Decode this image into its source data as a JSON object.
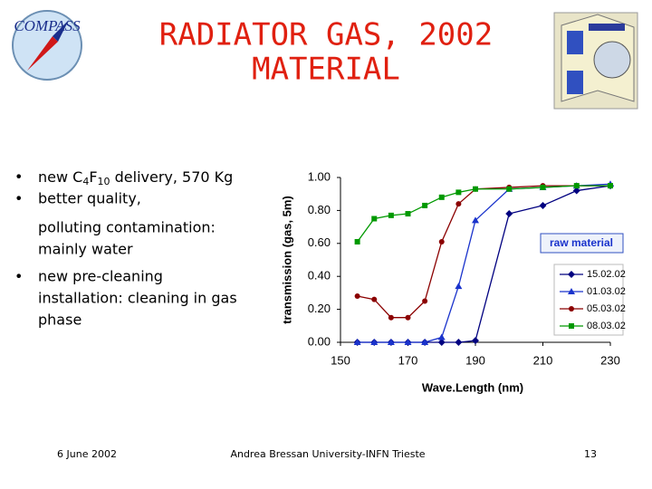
{
  "slide": {
    "logo": "COMPASS",
    "title": [
      "RADIATOR GAS, 2002",
      "MATERIAL"
    ],
    "bullets": [
      [
        [
          "new C",
          "4",
          "F",
          "10",
          " delivery, 570 Kg"
        ]
      ],
      [
        "better quality,",
        "polluting contamination:",
        "mainly water"
      ],
      [
        "new pre-cleaning",
        "installation: cleaning in gas",
        "phase"
      ]
    ],
    "footer": {
      "date": "6 June 2002",
      "author": "Andrea Bressan University-INFN Trieste",
      "page": "13"
    }
  },
  "chart_data": {
    "type": "line",
    "y_label": "transmission (gas, 5m)",
    "x_label": "Wave.Length (nm)",
    "annotation": "raw material",
    "x": [
      155,
      160,
      165,
      170,
      175,
      180,
      185,
      190,
      200,
      210,
      220,
      230
    ],
    "xlim": [
      150,
      230
    ],
    "xticks": [
      150,
      170,
      190,
      210,
      230
    ],
    "ylim": [
      0,
      1
    ],
    "yticks": [
      {
        "value": 0,
        "label": "0.00"
      },
      {
        "value": 0.2,
        "label": "0.20"
      },
      {
        "value": 0.4,
        "label": "0.40"
      },
      {
        "value": 0.6,
        "label": "0.60"
      },
      {
        "value": 0.8,
        "label": "0.80"
      },
      {
        "value": 1,
        "label": "1.00"
      }
    ],
    "grid": false,
    "legend": "lower right",
    "series": [
      {
        "name": "15.02.02",
        "color": "#000080",
        "marker": "diamond",
        "values": [
          0,
          0,
          0,
          0,
          0,
          0,
          0,
          0.01,
          0.78,
          0.83,
          0.92,
          0.95
        ]
      },
      {
        "name": "01.03.02",
        "color": "#1a33cc",
        "marker": "triangle",
        "values": [
          0,
          0,
          0,
          0,
          0,
          0.03,
          0.34,
          0.74,
          0.93,
          0.94,
          0.95,
          0.96
        ]
      },
      {
        "name": "05.03.02",
        "color": "#8b0000",
        "marker": "circle",
        "values": [
          0.28,
          0.26,
          0.15,
          0.15,
          0.25,
          0.61,
          0.84,
          0.93,
          0.94,
          0.95,
          0.95,
          0.95
        ]
      },
      {
        "name": "08.03.02",
        "color": "#009900",
        "marker": "square",
        "values": [
          0.61,
          0.75,
          0.77,
          0.78,
          0.83,
          0.88,
          0.91,
          0.93,
          0.93,
          0.94,
          0.95,
          0.95
        ]
      }
    ]
  }
}
